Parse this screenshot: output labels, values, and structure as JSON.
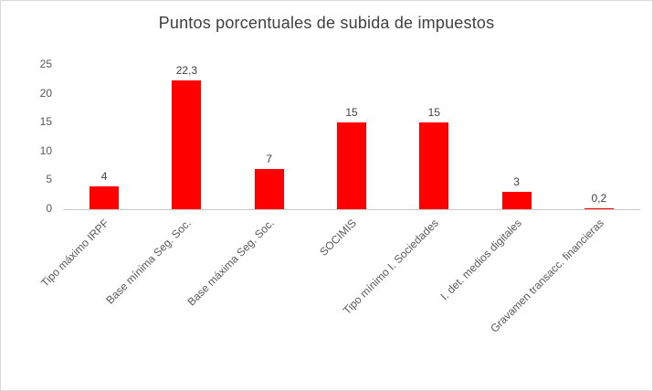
{
  "chart_data": {
    "type": "bar",
    "title": "Puntos porcentuales de subida de impuestos",
    "categories": [
      "Tipo máximo IRPF",
      "Base mínima Seg. Soc.",
      "Base máxima Seg. Soc.",
      "SOCIMIS",
      "Tipo mínimo I. Sociedades",
      "I. det. medios digitales",
      "Gravamen transacc. financieras"
    ],
    "values": [
      4,
      22.3,
      7,
      15,
      15,
      3,
      0.2
    ],
    "value_labels": [
      "4",
      "22,3",
      "7",
      "15",
      "15",
      "3",
      "0,2"
    ],
    "ylim": [
      0,
      25
    ],
    "yticks": [
      0,
      5,
      10,
      15,
      20,
      25
    ],
    "bar_color": "#FF0000",
    "grid": false,
    "legend": false,
    "xlabel": "",
    "ylabel": ""
  }
}
